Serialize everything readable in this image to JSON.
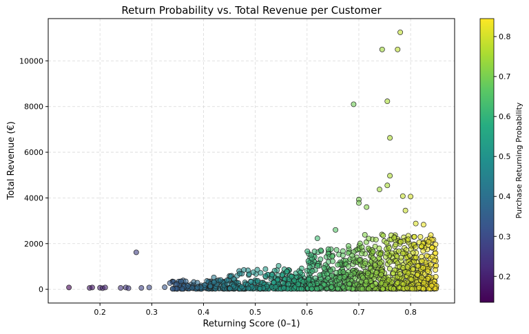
{
  "chart_data": {
    "type": "scatter",
    "title": "Return Probability vs. Total Revenue per Customer",
    "xlabel": "Returning Score (0–1)",
    "ylabel": "Total Revenue (€)",
    "xlim": [
      0.1,
      0.885
    ],
    "ylim": [
      -600,
      11850
    ],
    "x_ticks": [
      0.2,
      0.3,
      0.4,
      0.5,
      0.6,
      0.7,
      0.8
    ],
    "x_tick_labels": [
      "0.2",
      "0.3",
      "0.4",
      "0.5",
      "0.6",
      "0.7",
      "0.8"
    ],
    "y_ticks": [
      0,
      2000,
      4000,
      6000,
      8000,
      10000
    ],
    "y_tick_labels": [
      "0",
      "2000",
      "4000",
      "6000",
      "8000",
      "10000"
    ],
    "grid": true,
    "colormap": "viridis",
    "colorbar": {
      "label": "Purchase Returning Probability",
      "range": [
        0.135,
        0.845
      ],
      "ticks": [
        0.2,
        0.3,
        0.4,
        0.5,
        0.6,
        0.7,
        0.8
      ],
      "tick_labels": [
        "0.2",
        "0.3",
        "0.4",
        "0.5",
        "0.6",
        "0.7",
        "0.8"
      ]
    },
    "color_by": "x",
    "highlight_points": [
      {
        "x": 0.14,
        "y": 80
      },
      {
        "x": 0.18,
        "y": 60
      },
      {
        "x": 0.185,
        "y": 80
      },
      {
        "x": 0.2,
        "y": 70
      },
      {
        "x": 0.205,
        "y": 50
      },
      {
        "x": 0.21,
        "y": 80
      },
      {
        "x": 0.24,
        "y": 60
      },
      {
        "x": 0.25,
        "y": 80
      },
      {
        "x": 0.255,
        "y": 50
      },
      {
        "x": 0.27,
        "y": 1620
      },
      {
        "x": 0.28,
        "y": 60
      },
      {
        "x": 0.295,
        "y": 80
      },
      {
        "x": 0.325,
        "y": 90
      },
      {
        "x": 0.335,
        "y": 270
      },
      {
        "x": 0.69,
        "y": 8100
      },
      {
        "x": 0.745,
        "y": 10500
      },
      {
        "x": 0.755,
        "y": 8230
      },
      {
        "x": 0.76,
        "y": 6630
      },
      {
        "x": 0.775,
        "y": 10500
      },
      {
        "x": 0.78,
        "y": 11250
      },
      {
        "x": 0.76,
        "y": 4970
      },
      {
        "x": 0.755,
        "y": 4550
      },
      {
        "x": 0.74,
        "y": 4370
      },
      {
        "x": 0.7,
        "y": 3930
      },
      {
        "x": 0.7,
        "y": 3780
      },
      {
        "x": 0.715,
        "y": 3600
      },
      {
        "x": 0.785,
        "y": 4080
      },
      {
        "x": 0.8,
        "y": 4060
      },
      {
        "x": 0.79,
        "y": 3450
      },
      {
        "x": 0.62,
        "y": 2230
      },
      {
        "x": 0.655,
        "y": 2600
      },
      {
        "x": 0.68,
        "y": 1900
      },
      {
        "x": 0.835,
        "y": 2080
      },
      {
        "x": 0.825,
        "y": 2830
      },
      {
        "x": 0.81,
        "y": 2880
      },
      {
        "x": 0.545,
        "y": 1030
      },
      {
        "x": 0.47,
        "y": 680
      },
      {
        "x": 0.42,
        "y": 520
      }
    ],
    "bulk_clusters": [
      {
        "x_min": 0.34,
        "x_max": 0.45,
        "y_max": 400,
        "count": 140
      },
      {
        "x_min": 0.45,
        "x_max": 0.6,
        "y_max": 900,
        "count": 260
      },
      {
        "x_min": 0.6,
        "x_max": 0.7,
        "y_max": 1800,
        "count": 320
      },
      {
        "x_min": 0.7,
        "x_max": 0.85,
        "y_max": 2400,
        "count": 620
      }
    ]
  }
}
